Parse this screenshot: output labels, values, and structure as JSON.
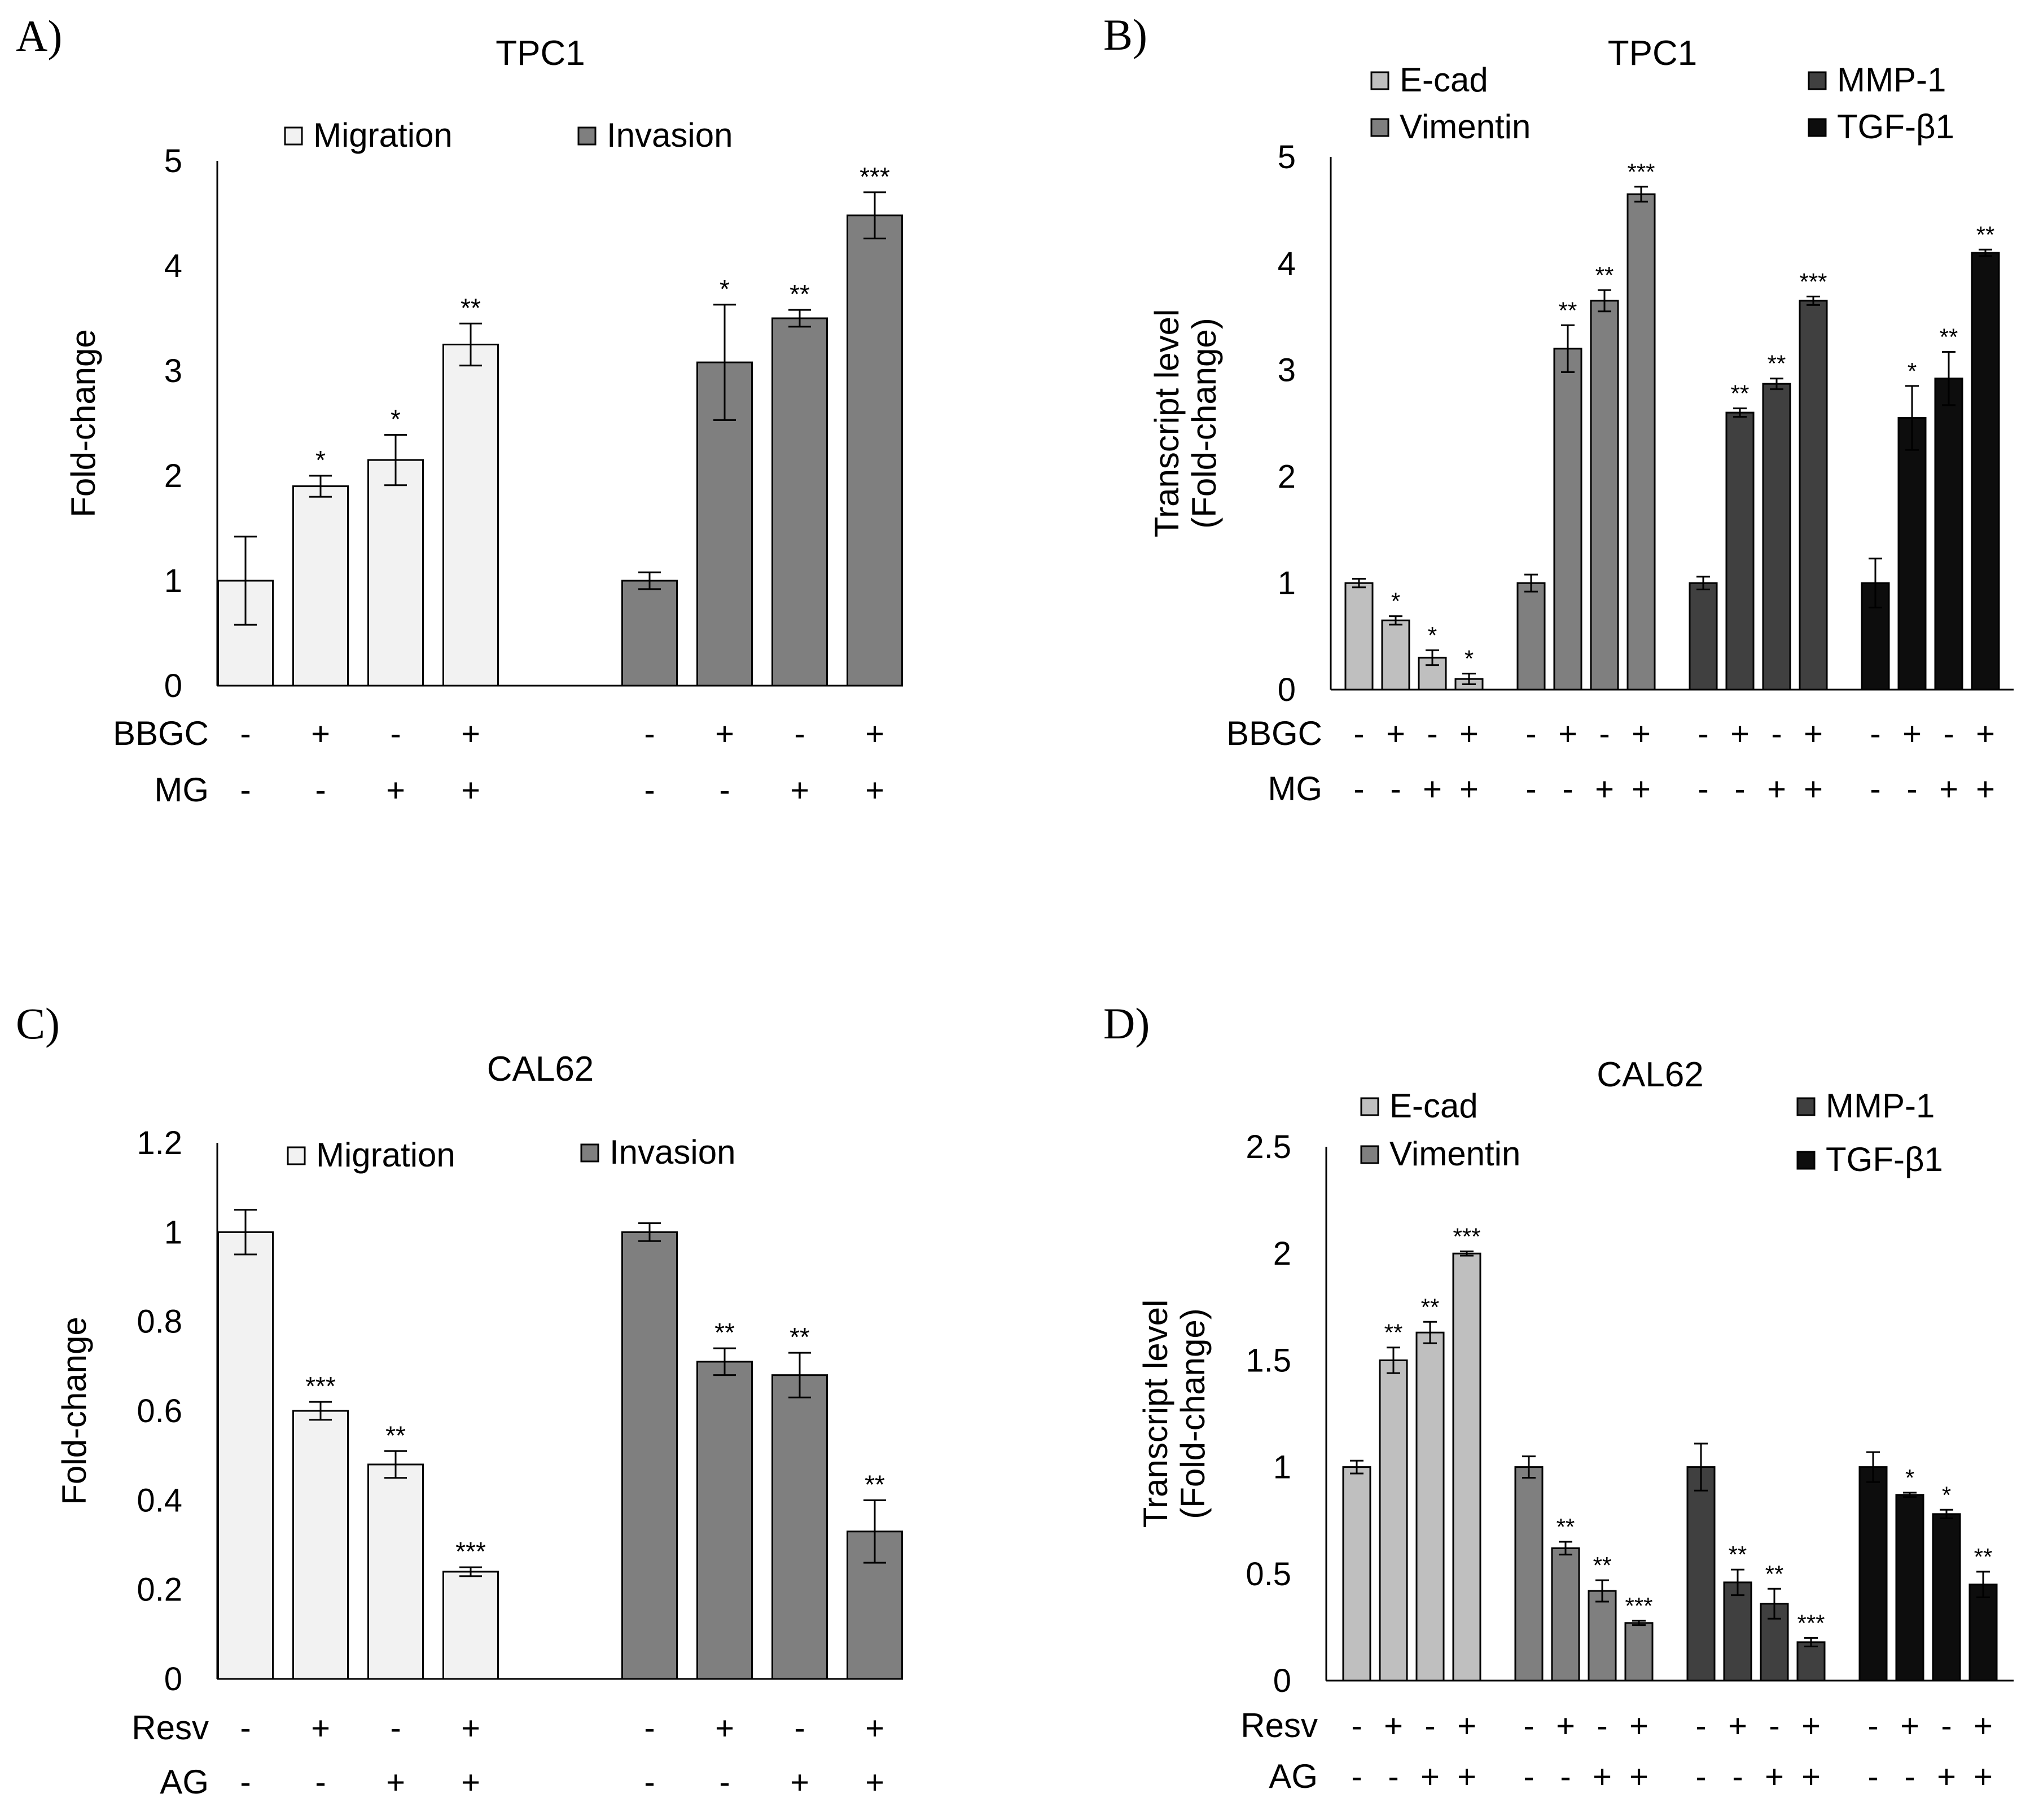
{
  "colors": {
    "migration": "#f2f2f2",
    "invasion": "#7f7f7f",
    "ecad": "#bfbfbf",
    "vimentin": "#7f7f7f",
    "mmp1": "#404040",
    "tgfb1": "#0d0d0d"
  },
  "chart_data": [
    {
      "id": "A",
      "panel_label": "A)",
      "type": "bar",
      "title": "TPC1",
      "ylabel": [
        "Fold-change"
      ],
      "ylim": [
        0,
        5
      ],
      "yticks": [
        "0",
        "1",
        "2",
        "3",
        "4",
        "5"
      ],
      "ytick_values": [
        0,
        1,
        2,
        3,
        4,
        5
      ],
      "legend": [
        {
          "name": "Migration",
          "color": "#f2f2f2"
        },
        {
          "name": "Invasion",
          "color": "#7f7f7f"
        }
      ],
      "treatment_labels": [
        "BBGC",
        "MG"
      ],
      "treatment_signs": [
        [
          "-",
          "+",
          "-",
          "+"
        ],
        [
          "-",
          "-",
          "+",
          "+"
        ]
      ],
      "series": [
        {
          "name": "Migration",
          "color": "#f2f2f2",
          "values": [
            1.0,
            1.9,
            2.15,
            3.25
          ],
          "errors": [
            0.42,
            0.1,
            0.24,
            0.2
          ],
          "sig": [
            "",
            "*",
            "*",
            "**"
          ]
        },
        {
          "name": "Invasion",
          "color": "#7f7f7f",
          "values": [
            1.0,
            3.08,
            3.5,
            4.48
          ],
          "errors": [
            0.08,
            0.55,
            0.08,
            0.22
          ],
          "sig": [
            "",
            "*",
            "**",
            "***"
          ]
        }
      ]
    },
    {
      "id": "B",
      "panel_label": "B)",
      "type": "bar",
      "title": "TPC1",
      "ylabel": [
        "Transcript level",
        "(Fold-change)"
      ],
      "ylim": [
        0,
        5
      ],
      "yticks": [
        "0",
        "1",
        "2",
        "3",
        "4",
        "5"
      ],
      "ytick_values": [
        0,
        1,
        2,
        3,
        4,
        5
      ],
      "legend": [
        {
          "name": "E-cad",
          "color": "#bfbfbf"
        },
        {
          "name": "Vimentin",
          "color": "#7f7f7f"
        },
        {
          "name": "MMP-1",
          "color": "#404040"
        },
        {
          "name": "TGF-β1",
          "color": "#0d0d0d"
        }
      ],
      "treatment_labels": [
        "BBGC",
        "MG"
      ],
      "treatment_signs": [
        [
          "-",
          "+",
          "-",
          "+"
        ],
        [
          "-",
          "-",
          "+",
          "+"
        ]
      ],
      "series": [
        {
          "name": "E-cad",
          "color": "#bfbfbf",
          "values": [
            1.0,
            0.65,
            0.3,
            0.1
          ],
          "errors": [
            0.04,
            0.04,
            0.07,
            0.05
          ],
          "sig": [
            "",
            "*",
            "*",
            "*"
          ]
        },
        {
          "name": "Vimentin",
          "color": "#7f7f7f",
          "values": [
            1.0,
            3.2,
            3.65,
            4.65
          ],
          "errors": [
            0.08,
            0.22,
            0.1,
            0.07
          ],
          "sig": [
            "",
            "**",
            "**",
            "***"
          ]
        },
        {
          "name": "MMP-1",
          "color": "#404040",
          "values": [
            1.0,
            2.6,
            2.87,
            3.65
          ],
          "errors": [
            0.06,
            0.04,
            0.05,
            0.04
          ],
          "sig": [
            "",
            "**",
            "**",
            "***"
          ]
        },
        {
          "name": "TGF-β1",
          "color": "#0d0d0d",
          "values": [
            1.0,
            2.55,
            2.92,
            4.1
          ],
          "errors": [
            0.23,
            0.3,
            0.25,
            0.03
          ],
          "sig": [
            "",
            "*",
            "**",
            "**"
          ]
        }
      ]
    },
    {
      "id": "C",
      "panel_label": "C)",
      "type": "bar",
      "title": "CAL62",
      "ylabel": [
        "Fold-change"
      ],
      "ylim": [
        0,
        1.2
      ],
      "yticks": [
        "0",
        "0.2",
        "0.4",
        "0.6",
        "0.8",
        "1",
        "1.2"
      ],
      "ytick_values": [
        0,
        0.2,
        0.4,
        0.6,
        0.8,
        1.0,
        1.2
      ],
      "legend": [
        {
          "name": "Migration",
          "color": "#f2f2f2"
        },
        {
          "name": "Invasion",
          "color": "#7f7f7f"
        }
      ],
      "treatment_labels": [
        "Resv",
        "AG"
      ],
      "treatment_signs": [
        [
          "-",
          "+",
          "-",
          "+"
        ],
        [
          "-",
          "-",
          "+",
          "+"
        ]
      ],
      "series": [
        {
          "name": "Migration",
          "color": "#f2f2f2",
          "values": [
            1.0,
            0.6,
            0.48,
            0.24
          ],
          "errors": [
            0.05,
            0.02,
            0.03,
            0.01
          ],
          "sig": [
            "",
            "***",
            "**",
            "***"
          ]
        },
        {
          "name": "Invasion",
          "color": "#7f7f7f",
          "values": [
            1.0,
            0.71,
            0.68,
            0.33
          ],
          "errors": [
            0.02,
            0.03,
            0.05,
            0.07
          ],
          "sig": [
            "",
            "**",
            "**",
            "**"
          ]
        }
      ]
    },
    {
      "id": "D",
      "panel_label": "D)",
      "type": "bar",
      "title": "CAL62",
      "ylabel": [
        "Transcript level",
        "(Fold-change)"
      ],
      "ylim": [
        0,
        2.5
      ],
      "yticks": [
        "0",
        "0.5",
        "1",
        "1.5",
        "2",
        "2.5"
      ],
      "ytick_values": [
        0,
        0.5,
        1.0,
        1.5,
        2.0,
        2.5
      ],
      "legend": [
        {
          "name": "E-cad",
          "color": "#bfbfbf"
        },
        {
          "name": "Vimentin",
          "color": "#7f7f7f"
        },
        {
          "name": "MMP-1",
          "color": "#404040"
        },
        {
          "name": "TGF-β1",
          "color": "#0d0d0d"
        }
      ],
      "treatment_labels": [
        "Resv",
        "AG"
      ],
      "treatment_signs": [
        [
          "-",
          "+",
          "-",
          "+"
        ],
        [
          "-",
          "-",
          "+",
          "+"
        ]
      ],
      "series": [
        {
          "name": "E-cad",
          "color": "#bfbfbf",
          "values": [
            1.0,
            1.5,
            1.63,
            2.0
          ],
          "errors": [
            0.03,
            0.06,
            0.05,
            0.01
          ],
          "sig": [
            "",
            "**",
            "**",
            "***"
          ]
        },
        {
          "name": "Vimentin",
          "color": "#7f7f7f",
          "values": [
            1.0,
            0.62,
            0.42,
            0.27
          ],
          "errors": [
            0.05,
            0.03,
            0.05,
            0.01
          ],
          "sig": [
            "",
            "**",
            "**",
            "***"
          ]
        },
        {
          "name": "MMP-1",
          "color": "#404040",
          "values": [
            1.0,
            0.46,
            0.36,
            0.18
          ],
          "errors": [
            0.11,
            0.06,
            0.07,
            0.02
          ],
          "sig": [
            "",
            "**",
            "**",
            "***"
          ]
        },
        {
          "name": "TGF-β1",
          "color": "#0d0d0d",
          "values": [
            1.0,
            0.87,
            0.78,
            0.45
          ],
          "errors": [
            0.07,
            0.01,
            0.02,
            0.06
          ],
          "sig": [
            "",
            "*",
            "*",
            "**"
          ]
        }
      ]
    }
  ]
}
